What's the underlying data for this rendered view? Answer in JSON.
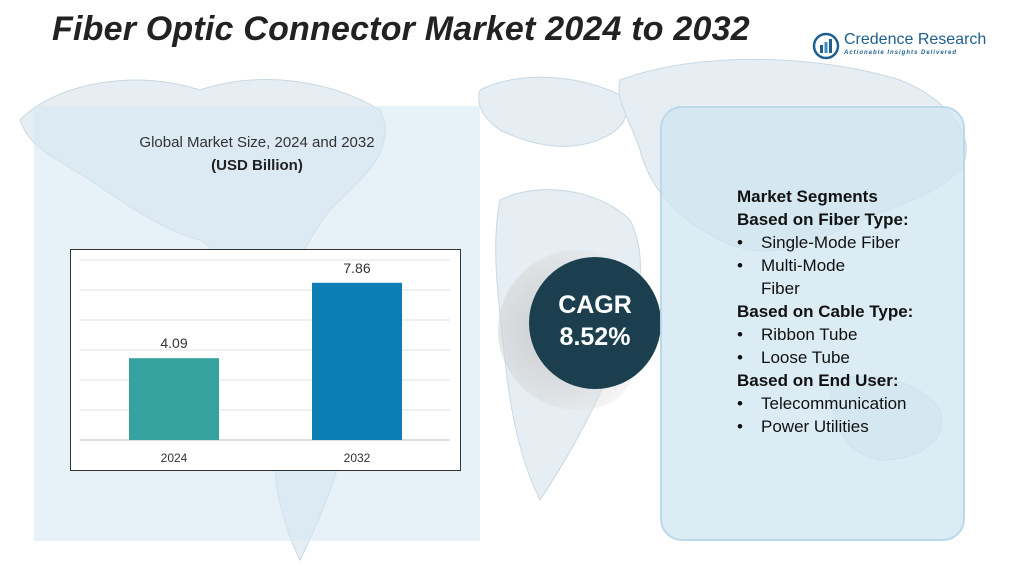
{
  "header": {
    "title": "Fiber Optic Connector Market 2024 to 2032"
  },
  "logo": {
    "name": "Credence Research",
    "tagline": "Actionable Insights Delivered"
  },
  "chart_data": {
    "type": "bar",
    "title": "Global Market Size, 2024 and 2032",
    "unit_label": "(USD Billion)",
    "categories": [
      "2024",
      "2032"
    ],
    "values": [
      4.09,
      7.86
    ],
    "value_labels": [
      "4.09",
      "7.86"
    ],
    "colors": [
      "#35a29f",
      "#0d7db5"
    ],
    "ylim": [
      0,
      9
    ],
    "grid": true,
    "legend": "none"
  },
  "cagr": {
    "label": "CAGR",
    "value": "8.52%"
  },
  "segments": {
    "heading": "Market Segments",
    "groups": [
      {
        "title": "Based on Fiber Type:",
        "items": [
          "Single-Mode Fiber",
          "Multi-Mode Fiber"
        ]
      },
      {
        "title": "Based on Cable Type:",
        "items": [
          "Ribbon Tube",
          "Loose Tube"
        ]
      },
      {
        "title": "Based on End User:",
        "items": [
          "Telecommunication",
          "Power Utilities"
        ]
      }
    ],
    "bullet": "•"
  },
  "colors": {
    "title": "#222222",
    "cagr_bg": "#1c3f4f",
    "panel_bg": "#d6e8f4",
    "brand": "#1e5f8f"
  }
}
